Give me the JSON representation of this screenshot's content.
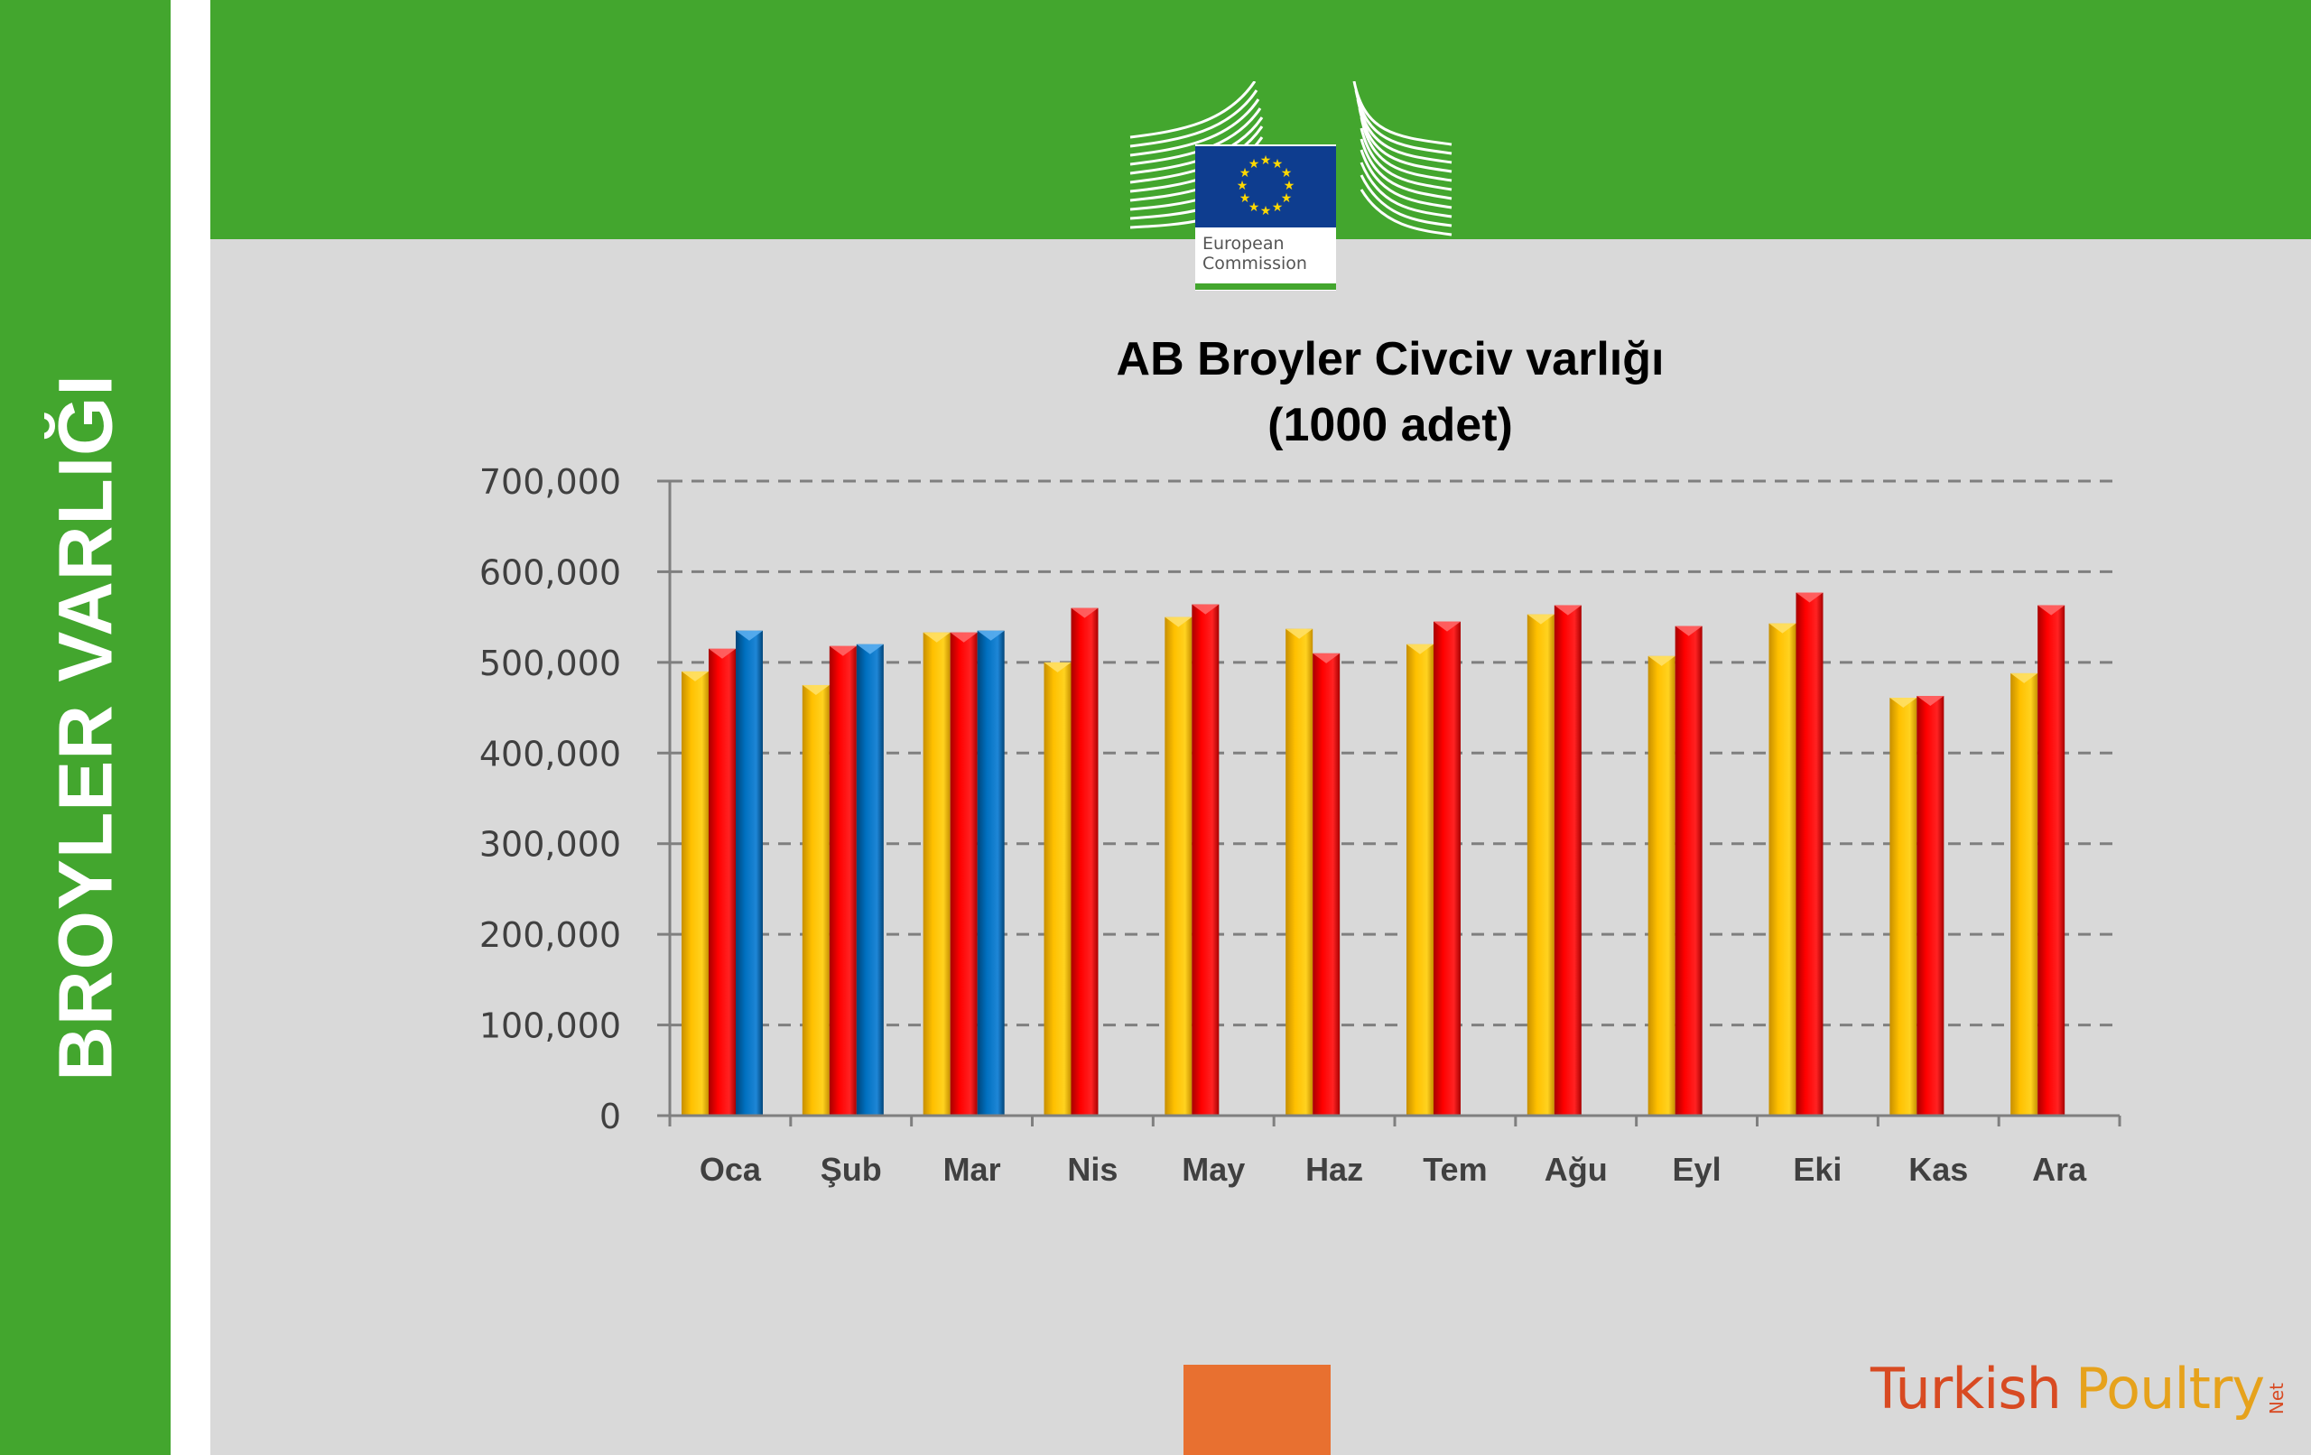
{
  "sidebar": {
    "title": "BROYLER VARLIĞI"
  },
  "logo": {
    "line1": "European",
    "line2": "Commission"
  },
  "brand": {
    "part1": "Turkish",
    "part2": "Poultry",
    "part3": "Net"
  },
  "colors": {
    "green": "#43a62e",
    "yellow": "#ffc000",
    "red": "#ff0000",
    "blue": "#0070c0",
    "orange": "#e87030"
  },
  "chart_data": {
    "type": "bar",
    "title_line1": "AB Broyler Civciv varlığı",
    "title_line2": "(1000 adet)",
    "categories": [
      "Oca",
      "Şub",
      "Mar",
      "Nis",
      "May",
      "Haz",
      "Tem",
      "Ağu",
      "Eyl",
      "Eki",
      "Kas",
      "Ara"
    ],
    "series": [
      {
        "color": "#ffc000",
        "values": [
          490000,
          475000,
          533000,
          500000,
          550000,
          537000,
          520000,
          553000,
          507000,
          543000,
          461000,
          488000
        ]
      },
      {
        "color": "#ff0000",
        "values": [
          515000,
          518000,
          533000,
          560000,
          564000,
          510000,
          545000,
          563000,
          540000,
          577000,
          463000,
          563000
        ]
      },
      {
        "color": "#0070c0",
        "values": [
          535000,
          520000,
          535000,
          null,
          null,
          null,
          null,
          null,
          null,
          null,
          null,
          null
        ]
      }
    ],
    "yticks": [
      "0",
      "100,000",
      "200,000",
      "300,000",
      "400,000",
      "500,000",
      "600,000",
      "700,000"
    ],
    "ylim": [
      0,
      700000
    ],
    "grid": true,
    "legend": "none"
  }
}
